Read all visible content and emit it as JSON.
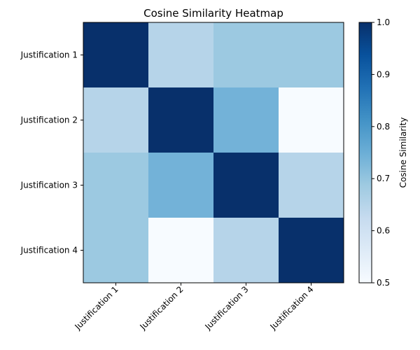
{
  "chart_data": {
    "type": "heatmap",
    "title": "Cosine Similarity Heatmap",
    "row_labels": [
      "Justification 1",
      "Justification 2",
      "Justification 3",
      "Justification 4"
    ],
    "col_labels": [
      "Justification 1",
      "Justification 2",
      "Justification 3",
      "Justification 4"
    ],
    "values": [
      [
        1.0,
        0.65,
        0.69,
        0.69
      ],
      [
        0.65,
        1.0,
        0.74,
        0.5
      ],
      [
        0.69,
        0.74,
        1.0,
        0.65
      ],
      [
        0.69,
        0.5,
        0.65,
        1.0
      ]
    ],
    "colormap": "Blues",
    "colorbar": {
      "label": "Cosine Similarity",
      "range": [
        0.5,
        1.0
      ],
      "ticks": [
        "0.5",
        "0.6",
        "0.7",
        "0.8",
        "0.9",
        "1.0"
      ]
    },
    "x_tick_rotation_deg": 45
  }
}
